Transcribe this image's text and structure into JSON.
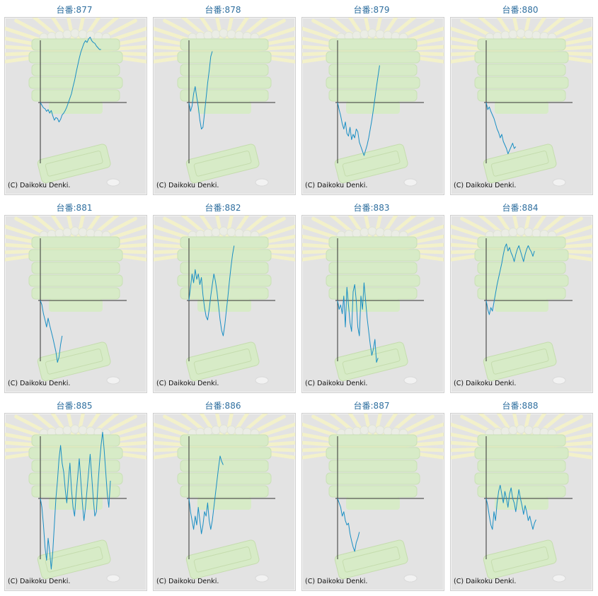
{
  "chart_data": [
    {
      "type": "line",
      "title": "台番:877",
      "copyright": "(C) Daikoku Denki.",
      "y": [
        0,
        -3,
        -6,
        -7,
        -10,
        -8,
        -12,
        -9,
        -15,
        -20,
        -17,
        -18,
        -22,
        -19,
        -14,
        -12,
        -9,
        -5,
        0,
        5,
        10,
        18,
        25,
        34,
        42,
        50,
        57,
        62,
        67,
        70,
        68,
        72,
        74,
        70,
        68,
        67,
        64,
        62,
        60,
        60
      ]
    },
    {
      "type": "line",
      "title": "台番:878",
      "copyright": "(C) Daikoku Denki.",
      "y": [
        0,
        -10,
        -4,
        10,
        18,
        6,
        -5,
        -20,
        -30,
        -28,
        -12,
        5,
        22,
        36,
        52,
        58
      ]
    },
    {
      "type": "line",
      "title": "台番:879",
      "copyright": "(C) Daikoku Denki.",
      "y": [
        0,
        -8,
        -15,
        -24,
        -30,
        -22,
        -35,
        -38,
        -28,
        -42,
        -36,
        -40,
        -30,
        -33,
        -45,
        -50,
        -55,
        -60,
        -54,
        -48,
        -40,
        -30,
        -20,
        -8,
        5,
        18,
        30,
        42
      ]
    },
    {
      "type": "line",
      "title": "台番:880",
      "copyright": "(C) Daikoku Denki.",
      "y": [
        0,
        -8,
        -5,
        -10,
        -14,
        -18,
        -24,
        -30,
        -34,
        -40,
        -36,
        -44,
        -48,
        -52,
        -58,
        -54,
        -50,
        -46,
        -52,
        -50
      ]
    },
    {
      "type": "line",
      "title": "台番:881",
      "copyright": "(C) Daikoku Denki.",
      "y": [
        0,
        -5,
        -15,
        -22,
        -30,
        -20,
        -28,
        -35,
        -42,
        -50,
        -58,
        -70,
        -64,
        -50,
        -40
      ]
    },
    {
      "type": "line",
      "title": "台番:882",
      "copyright": "(C) Daikoku Denki.",
      "y": [
        0,
        15,
        30,
        20,
        35,
        24,
        30,
        18,
        26,
        6,
        -8,
        -18,
        -22,
        -10,
        5,
        18,
        30,
        22,
        10,
        -6,
        -22,
        -34,
        -40,
        -28,
        -12,
        4,
        22,
        38,
        52,
        62
      ]
    },
    {
      "type": "line",
      "title": "台番:883",
      "copyright": "(C) Daikoku Denki.",
      "y": [
        0,
        -10,
        -5,
        -15,
        5,
        -30,
        15,
        -5,
        -25,
        -35,
        10,
        18,
        0,
        -30,
        -40,
        5,
        -10,
        20,
        0,
        -20,
        -35,
        -50,
        -62,
        -55,
        -44,
        -70,
        -65
      ]
    },
    {
      "type": "line",
      "title": "台番:884",
      "copyright": "(C) Daikoku Denki.",
      "y": [
        0,
        -10,
        -16,
        -8,
        -12,
        -2,
        8,
        18,
        26,
        34,
        42,
        52,
        60,
        64,
        56,
        60,
        54,
        50,
        44,
        52,
        58,
        62,
        56,
        50,
        44,
        52,
        58,
        62,
        58,
        55,
        50,
        56
      ]
    },
    {
      "type": "line",
      "title": "台番:885",
      "copyright": "(C) Daikoku Denki.",
      "y": [
        0,
        -10,
        -30,
        -55,
        -70,
        -45,
        -60,
        -80,
        -60,
        -30,
        0,
        20,
        45,
        60,
        40,
        30,
        10,
        -5,
        20,
        40,
        10,
        -10,
        -20,
        5,
        25,
        45,
        20,
        -5,
        -25,
        -10,
        10,
        30,
        50,
        25,
        0,
        -20,
        -15,
        15,
        40,
        60,
        75,
        55,
        30,
        5,
        -10,
        20
      ]
    },
    {
      "type": "line",
      "title": "台番:886",
      "copyright": "(C) Daikoku Denki.",
      "y": [
        0,
        -15,
        -25,
        -35,
        -20,
        -30,
        -10,
        -25,
        -40,
        -30,
        -15,
        -20,
        -5,
        -25,
        -35,
        -25,
        -10,
        5,
        20,
        35,
        48,
        42,
        38
      ]
    },
    {
      "type": "line",
      "title": "台番:887",
      "copyright": "(C) Daikoku Denki.",
      "y": [
        0,
        -5,
        -10,
        -20,
        -15,
        -25,
        -30,
        -28,
        -40,
        -48,
        -55,
        -60,
        -50,
        -45,
        -38
      ]
    },
    {
      "type": "line",
      "title": "台番:888",
      "copyright": "(C) Daikoku Denki.",
      "y": [
        0,
        -8,
        -20,
        -30,
        -35,
        -15,
        -25,
        -5,
        8,
        15,
        5,
        -5,
        8,
        0,
        -10,
        5,
        12,
        0,
        -5,
        -15,
        -2,
        10,
        0,
        -8,
        -18,
        -8,
        -15,
        -25,
        -20,
        -28,
        -35,
        -28,
        -24
      ]
    }
  ],
  "colors": {
    "line": "#1a8fc4",
    "axis": "#333333",
    "title": "#2f6f9f",
    "panel": "#e3e3e3",
    "watermark_green": "#d6ecc4",
    "watermark_ray": "#f5f3c8"
  }
}
